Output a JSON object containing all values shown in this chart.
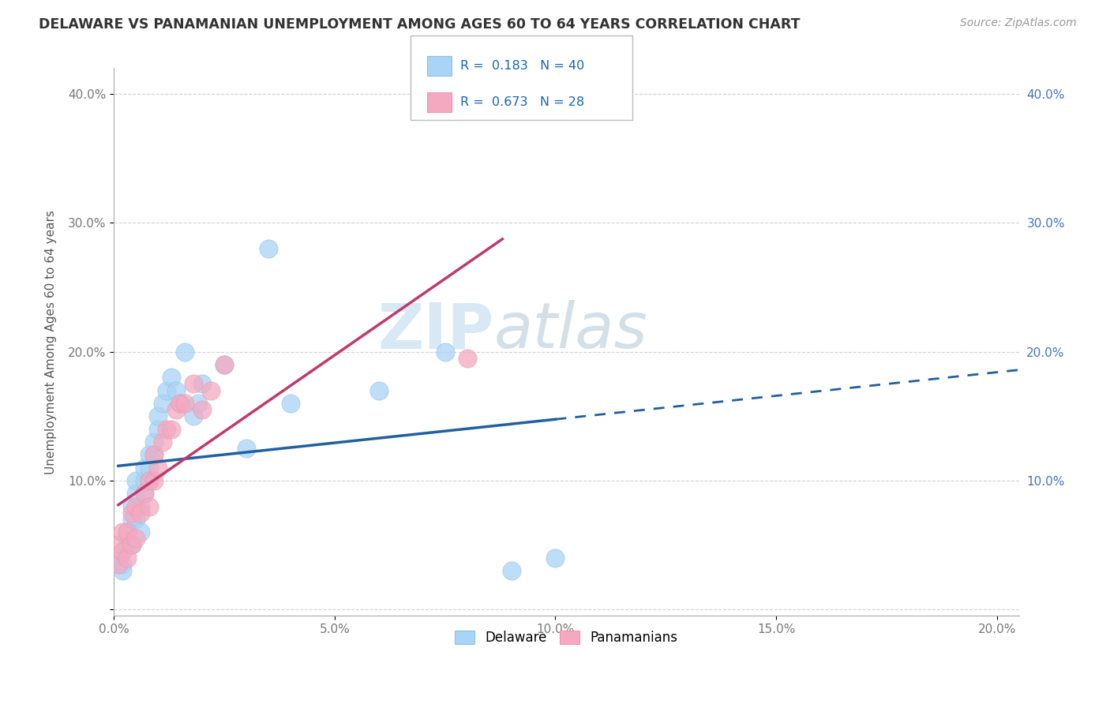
{
  "title": "DELAWARE VS PANAMANIAN UNEMPLOYMENT AMONG AGES 60 TO 64 YEARS CORRELATION CHART",
  "source": "Source: ZipAtlas.com",
  "ylabel": "Unemployment Among Ages 60 to 64 years",
  "xlim": [
    0.0,
    0.205
  ],
  "ylim": [
    -0.005,
    0.42
  ],
  "xticks": [
    0.0,
    0.05,
    0.1,
    0.15,
    0.2
  ],
  "xticklabels": [
    "0.0%",
    "5.0%",
    "10.0%",
    "15.0%",
    "20.0%"
  ],
  "yticks": [
    0.0,
    0.1,
    0.2,
    0.3,
    0.4
  ],
  "yticklabels": [
    "",
    "10.0%",
    "20.0%",
    "30.0%",
    "40.0%"
  ],
  "delaware_R": 0.183,
  "delaware_N": 40,
  "panama_R": 0.673,
  "panama_N": 28,
  "delaware_color": "#a8d4f5",
  "delaware_line_color": "#2060a0",
  "panama_color": "#f5a8c0",
  "panama_line_color": "#c0396b",
  "background_color": "#ffffff",
  "grid_color": "#c8c8c8",
  "watermark_zip": "ZIP",
  "watermark_atlas": "atlas",
  "delaware_x": [
    0.001,
    0.002,
    0.002,
    0.003,
    0.003,
    0.004,
    0.004,
    0.004,
    0.005,
    0.005,
    0.005,
    0.006,
    0.006,
    0.007,
    0.007,
    0.007,
    0.008,
    0.008,
    0.008,
    0.009,
    0.009,
    0.01,
    0.01,
    0.011,
    0.012,
    0.013,
    0.014,
    0.015,
    0.016,
    0.018,
    0.019,
    0.02,
    0.025,
    0.03,
    0.035,
    0.04,
    0.06,
    0.075,
    0.09,
    0.1
  ],
  "delaware_y": [
    0.04,
    0.035,
    0.03,
    0.05,
    0.06,
    0.05,
    0.07,
    0.08,
    0.07,
    0.09,
    0.1,
    0.06,
    0.08,
    0.09,
    0.1,
    0.11,
    0.1,
    0.11,
    0.12,
    0.12,
    0.13,
    0.14,
    0.15,
    0.16,
    0.17,
    0.18,
    0.17,
    0.16,
    0.2,
    0.15,
    0.16,
    0.175,
    0.19,
    0.125,
    0.28,
    0.16,
    0.17,
    0.2,
    0.03,
    0.04
  ],
  "panama_x": [
    0.001,
    0.001,
    0.002,
    0.002,
    0.003,
    0.003,
    0.004,
    0.004,
    0.005,
    0.005,
    0.006,
    0.007,
    0.008,
    0.008,
    0.009,
    0.009,
    0.01,
    0.011,
    0.012,
    0.013,
    0.014,
    0.015,
    0.016,
    0.018,
    0.02,
    0.022,
    0.025,
    0.08
  ],
  "panama_y": [
    0.035,
    0.05,
    0.045,
    0.06,
    0.04,
    0.06,
    0.05,
    0.075,
    0.055,
    0.08,
    0.075,
    0.09,
    0.08,
    0.1,
    0.1,
    0.12,
    0.11,
    0.13,
    0.14,
    0.14,
    0.155,
    0.16,
    0.16,
    0.175,
    0.155,
    0.17,
    0.19,
    0.195
  ]
}
